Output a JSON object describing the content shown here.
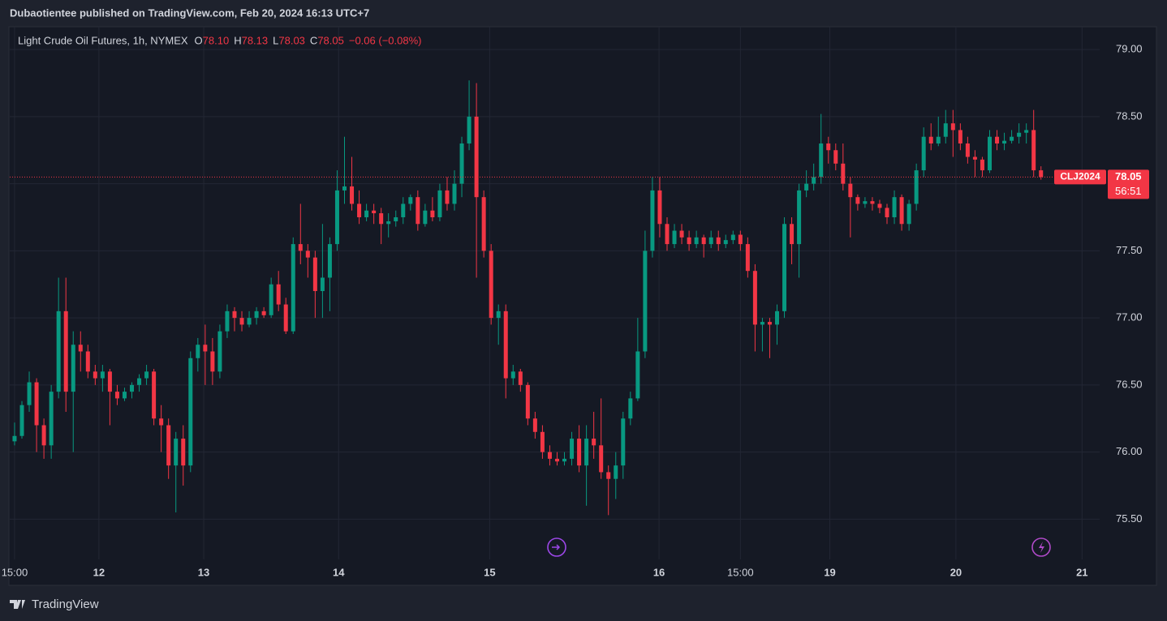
{
  "header": {
    "publisher": "Dubaotientee published on TradingView.com, Feb 20, 2024 16:13 UTC+7"
  },
  "footer": {
    "brand": "TradingView"
  },
  "chart_data": {
    "type": "candlestick",
    "legend": {
      "name": "Light Crude Oil Futures, 1h, NYMEX",
      "items": [
        {
          "key": "O",
          "value": "78.10"
        },
        {
          "key": "H",
          "value": "78.13"
        },
        {
          "key": "L",
          "value": "78.03"
        },
        {
          "key": "C",
          "value": "78.05"
        }
      ],
      "change": "−0.06 (−0.08%)"
    },
    "badge": {
      "symbol": "CLJ2024",
      "price": "78.05",
      "countdown": "56:51"
    },
    "up_color": "#089981",
    "down_color": "#f23645",
    "open": [
      76.08,
      76.12,
      76.35,
      76.52,
      76.2,
      76.05,
      76.45,
      77.05,
      76.45,
      76.8,
      76.75,
      76.6,
      76.55,
      76.6,
      76.45,
      76.4,
      76.45,
      76.5,
      76.55,
      76.6,
      76.25,
      76.2,
      75.9,
      76.1,
      75.9,
      76.7,
      76.8,
      76.75,
      76.6,
      76.9,
      77.05,
      77.0,
      76.95,
      77.0,
      77.05,
      77.02,
      77.25,
      77.1,
      76.9,
      77.55,
      77.5,
      77.45,
      77.2,
      77.3,
      77.55,
      77.95,
      77.98,
      77.85,
      77.75,
      77.8,
      77.78,
      77.7,
      77.72,
      77.75,
      77.85,
      77.9,
      77.7,
      77.8,
      77.75,
      77.95,
      77.85,
      78.0,
      78.3,
      78.5,
      77.9,
      77.5,
      77.0,
      77.05,
      76.55,
      76.6,
      76.5,
      76.25,
      76.15,
      76.0,
      75.95,
      75.93,
      75.95,
      76.1,
      75.9,
      76.1,
      76.05,
      75.85,
      75.8,
      75.9,
      76.25,
      76.4,
      76.75,
      77.5,
      77.95,
      77.7,
      77.55,
      77.65,
      77.6,
      77.55,
      77.6,
      77.55,
      77.6,
      77.55,
      77.58,
      77.62,
      77.55,
      77.35,
      76.95,
      76.97,
      76.95,
      77.05,
      77.7,
      77.55,
      77.95,
      78.0,
      78.05,
      78.3,
      78.25,
      78.15,
      78.0,
      77.9,
      77.85,
      77.87,
      77.85,
      77.82,
      77.75,
      77.9,
      77.7,
      77.85,
      78.1,
      78.35,
      78.3,
      78.35,
      78.45,
      78.4,
      78.3,
      78.2,
      78.18,
      78.1,
      78.35,
      78.3,
      78.32,
      78.35,
      78.38,
      78.4,
      78.1
    ],
    "high": [
      76.22,
      76.38,
      76.6,
      76.55,
      76.25,
      76.5,
      77.3,
      77.3,
      76.9,
      76.9,
      76.8,
      76.65,
      76.65,
      76.62,
      76.5,
      76.48,
      76.52,
      76.58,
      76.65,
      76.62,
      76.35,
      76.25,
      76.15,
      76.2,
      76.75,
      76.85,
      76.95,
      76.85,
      76.95,
      77.1,
      77.08,
      77.05,
      77.05,
      77.08,
      77.08,
      77.3,
      77.35,
      77.15,
      77.6,
      77.85,
      77.55,
      77.5,
      77.7,
      77.6,
      78.1,
      78.35,
      78.2,
      77.95,
      77.85,
      77.85,
      77.82,
      77.78,
      77.8,
      77.9,
      77.92,
      77.95,
      77.85,
      77.9,
      78.0,
      78.05,
      78.1,
      78.35,
      78.77,
      78.75,
      77.95,
      77.55,
      77.1,
      77.1,
      76.65,
      76.62,
      76.52,
      76.3,
      76.2,
      76.05,
      76.0,
      76.0,
      76.15,
      76.2,
      76.2,
      76.3,
      76.4,
      75.9,
      76.0,
      76.3,
      76.45,
      77.0,
      77.65,
      78.05,
      78.05,
      77.75,
      77.7,
      77.7,
      77.65,
      77.65,
      77.62,
      77.65,
      77.65,
      77.62,
      77.65,
      77.65,
      77.6,
      77.4,
      77.0,
      77.0,
      77.1,
      77.75,
      77.75,
      78.0,
      78.1,
      78.15,
      78.52,
      78.35,
      78.3,
      78.3,
      78.05,
      77.92,
      77.9,
      77.9,
      77.88,
      77.85,
      77.95,
      77.92,
      77.88,
      78.15,
      78.42,
      78.45,
      78.5,
      78.55,
      78.55,
      78.45,
      78.35,
      78.25,
      78.2,
      78.4,
      78.4,
      78.38,
      78.4,
      78.45,
      78.45,
      78.55,
      78.13
    ],
    "low": [
      76.05,
      76.1,
      76.3,
      76.0,
      75.95,
      75.95,
      76.4,
      76.3,
      76.0,
      76.6,
      76.55,
      76.5,
      76.45,
      76.2,
      76.35,
      76.38,
      76.4,
      76.45,
      76.5,
      76.2,
      76.0,
      75.8,
      75.55,
      75.75,
      75.85,
      76.6,
      76.5,
      76.5,
      76.55,
      76.85,
      76.9,
      76.9,
      76.93,
      76.95,
      77.0,
      77.0,
      77.05,
      76.88,
      76.88,
      77.4,
      77.3,
      77.0,
      77.0,
      77.05,
      77.5,
      77.85,
      77.8,
      77.7,
      77.72,
      77.7,
      77.55,
      77.6,
      77.68,
      77.7,
      77.8,
      77.65,
      77.68,
      77.72,
      77.72,
      77.8,
      77.8,
      77.9,
      78.25,
      77.3,
      77.45,
      76.95,
      76.8,
      76.4,
      76.5,
      76.45,
      76.2,
      76.1,
      75.95,
      75.9,
      75.9,
      75.9,
      75.9,
      75.85,
      75.6,
      75.95,
      75.8,
      75.53,
      75.65,
      75.8,
      76.2,
      76.38,
      76.7,
      77.45,
      77.6,
      77.5,
      77.52,
      77.55,
      77.5,
      77.52,
      77.45,
      77.52,
      77.5,
      77.52,
      77.55,
      77.5,
      77.3,
      76.75,
      76.75,
      76.7,
      76.8,
      77.0,
      77.4,
      77.3,
      77.9,
      77.95,
      78.0,
      78.15,
      78.1,
      77.95,
      77.6,
      77.8,
      77.82,
      77.8,
      77.78,
      77.7,
      77.7,
      77.65,
      77.65,
      77.8,
      78.05,
      78.25,
      78.28,
      78.3,
      78.2,
      78.25,
      78.15,
      78.05,
      78.05,
      78.08,
      78.25,
      78.25,
      78.3,
      78.3,
      78.3,
      78.05,
      78.03
    ],
    "close": [
      76.12,
      76.35,
      76.52,
      76.2,
      76.05,
      76.45,
      77.05,
      76.45,
      76.8,
      76.75,
      76.6,
      76.55,
      76.6,
      76.45,
      76.4,
      76.45,
      76.5,
      76.55,
      76.6,
      76.25,
      76.2,
      75.9,
      76.1,
      75.9,
      76.7,
      76.8,
      76.75,
      76.6,
      76.9,
      77.05,
      77.0,
      76.95,
      77.0,
      77.05,
      77.02,
      77.25,
      77.1,
      76.9,
      77.55,
      77.5,
      77.45,
      77.2,
      77.3,
      77.55,
      77.95,
      77.98,
      77.85,
      77.75,
      77.8,
      77.78,
      77.7,
      77.72,
      77.75,
      77.85,
      77.9,
      77.7,
      77.8,
      77.75,
      77.95,
      77.85,
      78.0,
      78.3,
      78.5,
      77.9,
      77.5,
      77.0,
      77.05,
      76.55,
      76.6,
      76.5,
      76.25,
      76.15,
      76.0,
      75.95,
      75.93,
      75.95,
      76.1,
      75.9,
      76.1,
      76.05,
      75.85,
      75.8,
      75.9,
      76.25,
      76.4,
      76.75,
      77.5,
      77.95,
      77.7,
      77.55,
      77.65,
      77.6,
      77.55,
      77.6,
      77.55,
      77.6,
      77.55,
      77.58,
      77.62,
      77.55,
      77.35,
      76.95,
      76.97,
      76.95,
      77.05,
      77.7,
      77.55,
      77.95,
      78.0,
      78.05,
      78.3,
      78.25,
      78.15,
      78.0,
      77.9,
      77.85,
      77.87,
      77.85,
      77.82,
      77.75,
      77.9,
      77.7,
      77.85,
      78.1,
      78.35,
      78.3,
      78.35,
      78.45,
      78.4,
      78.3,
      78.2,
      78.18,
      78.1,
      78.35,
      78.3,
      78.32,
      78.35,
      78.38,
      78.4,
      78.1,
      78.05
    ],
    "xlim": [
      -0.66,
      148
    ],
    "xticks": [
      {
        "value": 0,
        "label": "15:00"
      },
      {
        "value": 11.5,
        "label": "12"
      },
      {
        "value": 25.8,
        "label": "13"
      },
      {
        "value": 44.2,
        "label": "14"
      },
      {
        "value": 64.8,
        "label": "15"
      },
      {
        "value": 87.9,
        "label": "16"
      },
      {
        "value": 99,
        "label": "15:00"
      },
      {
        "value": 111.2,
        "label": "19"
      },
      {
        "value": 128.4,
        "label": "20"
      },
      {
        "value": 145.6,
        "label": "21"
      }
    ],
    "ylim": [
      75.2,
      79.17
    ],
    "yticks": [
      {
        "value": 75.5,
        "label": "75.50"
      },
      {
        "value": 76,
        "label": "76.00"
      },
      {
        "value": 76.5,
        "label": "76.50"
      },
      {
        "value": 77,
        "label": "77.00"
      },
      {
        "value": 77.5,
        "label": "77.50"
      },
      {
        "value": 78,
        "label": "78.00"
      },
      {
        "value": 78.5,
        "label": "78.50"
      },
      {
        "value": 79,
        "label": "79.00"
      }
    ],
    "grid": true
  }
}
